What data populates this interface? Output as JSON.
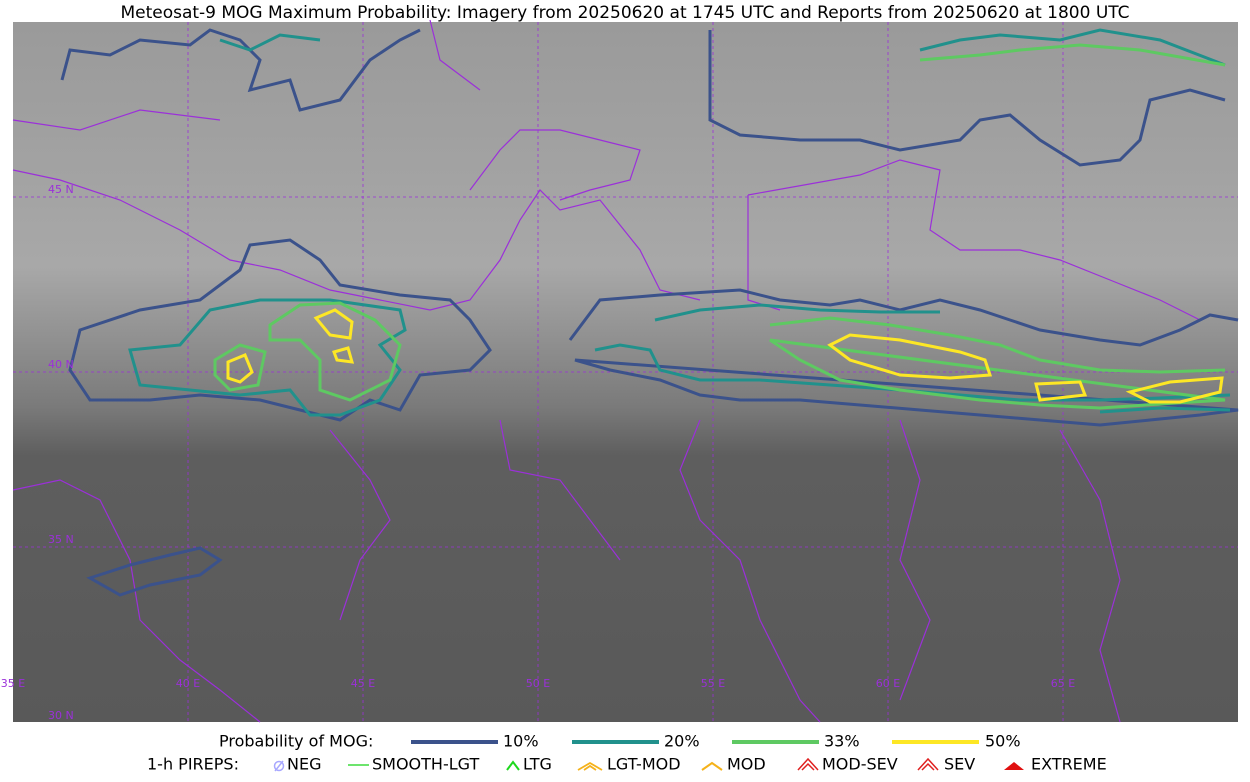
{
  "header": {
    "title": "Meteosat-9 MOG Maximum Probability: Imagery from 20250620 at 1745 UTC and Reports from 20250620 at 1800 UTC"
  },
  "map": {
    "lat_labels": [
      "45 N",
      "40 N",
      "35 N",
      "30 N"
    ],
    "lon_labels": [
      "35 E",
      "40 E",
      "45 E",
      "50 E",
      "55 E",
      "60 E",
      "65 E"
    ]
  },
  "legend": {
    "probability": {
      "label": "Probability of MOG:",
      "items": [
        "10%",
        "20%",
        "33%",
        "50%"
      ]
    },
    "pireps": {
      "label": "1-h PIREPS:",
      "items": [
        "NEG",
        "SMOOTH-LGT",
        "LTG",
        "LGT-MOD",
        "MOD",
        "MOD-SEV",
        "SEV",
        "EXTREME"
      ]
    }
  }
}
